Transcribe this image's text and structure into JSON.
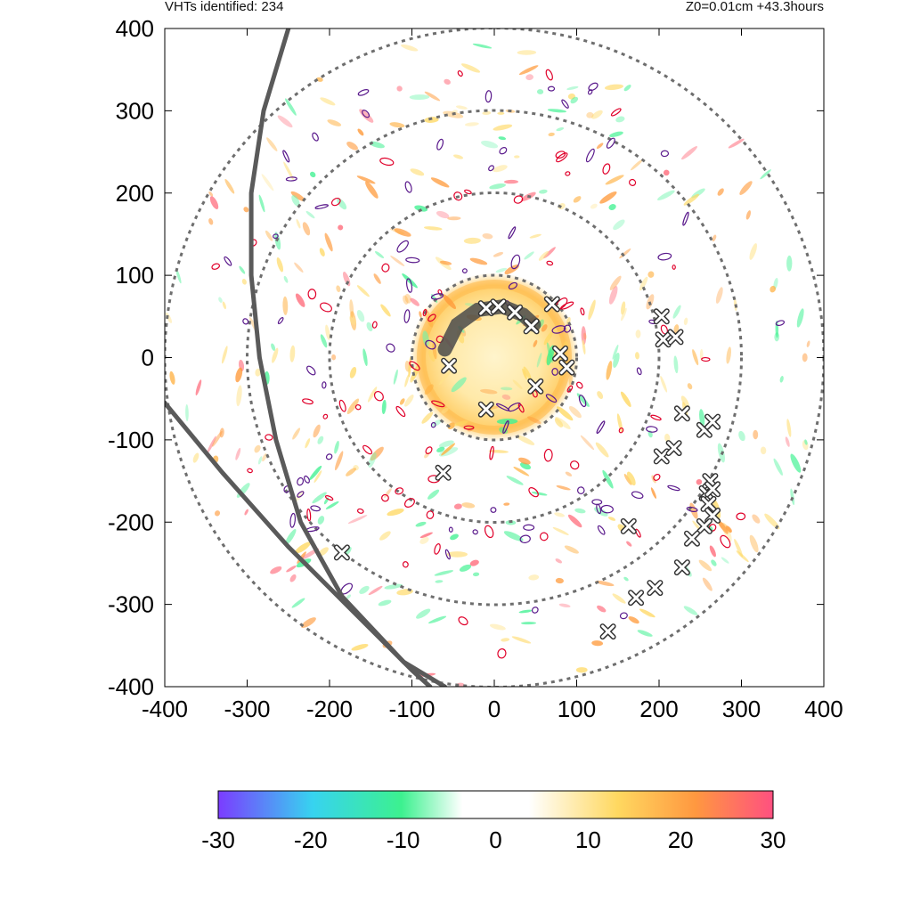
{
  "header": {
    "left_text": "VHTs identified: 234",
    "right_text": "Z0=0.01cm  +43.3hours"
  },
  "colors": {
    "ring": "#6e6e6e",
    "track": "#5a5a5a",
    "contour_red": "#e0002a",
    "contour_purple": "#5a1a8c",
    "marker_fill": "#ffffff",
    "marker_stroke": "#333333"
  },
  "chart_data": {
    "type": "scatter",
    "title": "",
    "xlabel": "",
    "ylabel": "",
    "xlim": [
      -400,
      400
    ],
    "ylim": [
      -400,
      400
    ],
    "xticks": [
      -400,
      -300,
      -200,
      -100,
      0,
      100,
      200,
      300,
      400
    ],
    "yticks": [
      -400,
      -300,
      -200,
      -100,
      0,
      100,
      200,
      300,
      400
    ],
    "grid": false,
    "range_rings_km": [
      100,
      200,
      300,
      400
    ],
    "vht_count": 234,
    "vht_markers": [
      {
        "x": -10,
        "y": 60
      },
      {
        "x": 5,
        "y": 62
      },
      {
        "x": 25,
        "y": 55
      },
      {
        "x": 45,
        "y": 38
      },
      {
        "x": 70,
        "y": 65
      },
      {
        "x": 80,
        "y": 5
      },
      {
        "x": 88,
        "y": -12
      },
      {
        "x": -55,
        "y": -10
      },
      {
        "x": 50,
        "y": -35
      },
      {
        "x": -10,
        "y": -63
      },
      {
        "x": -62,
        "y": -140
      },
      {
        "x": -185,
        "y": -237
      },
      {
        "x": 138,
        "y": -333
      },
      {
        "x": 163,
        "y": -205
      },
      {
        "x": 172,
        "y": -292
      },
      {
        "x": 195,
        "y": -280
      },
      {
        "x": 203,
        "y": 50
      },
      {
        "x": 205,
        "y": 22
      },
      {
        "x": 220,
        "y": 25
      },
      {
        "x": 228,
        "y": -68
      },
      {
        "x": 203,
        "y": -120
      },
      {
        "x": 218,
        "y": -110
      },
      {
        "x": 255,
        "y": -88
      },
      {
        "x": 265,
        "y": -78
      },
      {
        "x": 262,
        "y": -150
      },
      {
        "x": 258,
        "y": -165
      },
      {
        "x": 265,
        "y": -160
      },
      {
        "x": 260,
        "y": -178
      },
      {
        "x": 265,
        "y": -192
      },
      {
        "x": 255,
        "y": -205
      },
      {
        "x": 240,
        "y": -220
      },
      {
        "x": 228,
        "y": -255
      }
    ],
    "tracks": [
      {
        "points": [
          [
            -250,
            400
          ],
          [
            -280,
            300
          ],
          [
            -295,
            200
          ],
          [
            -295,
            100
          ],
          [
            -285,
            0
          ],
          [
            -265,
            -100
          ],
          [
            -235,
            -200
          ],
          [
            -185,
            -290
          ],
          [
            -110,
            -370
          ],
          [
            -60,
            -400
          ]
        ]
      },
      {
        "points": [
          [
            -400,
            -55
          ],
          [
            -330,
            -140
          ],
          [
            -250,
            -230
          ],
          [
            -190,
            -290
          ],
          [
            -150,
            -330
          ],
          [
            -100,
            -380
          ],
          [
            -78,
            -400
          ]
        ]
      }
    ],
    "eyewall_arc": [
      [
        -60,
        10
      ],
      [
        -45,
        40
      ],
      [
        -20,
        58
      ],
      [
        10,
        62
      ],
      [
        35,
        52
      ],
      [
        48,
        40
      ]
    ],
    "colorbar": {
      "min": -30,
      "max": 30,
      "ticks": [
        -30,
        -20,
        -10,
        0,
        10,
        20,
        30
      ],
      "stops": [
        "#7b3cff",
        "#37d3f0",
        "#3cf18f",
        "#ffffff",
        "#ffffff",
        "#ffd860",
        "#ff9840",
        "#ff5080"
      ]
    }
  }
}
